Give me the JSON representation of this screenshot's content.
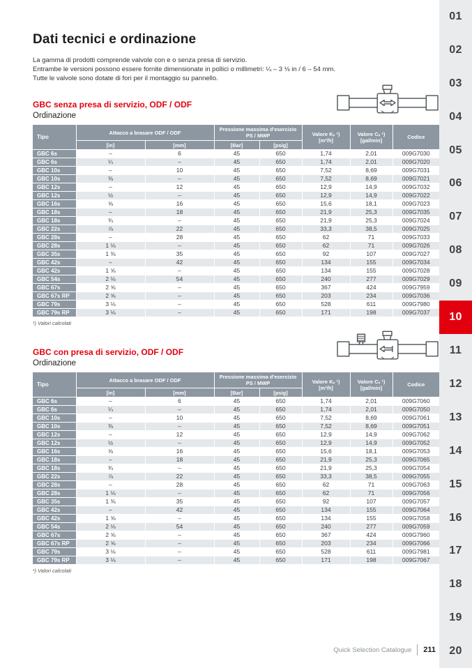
{
  "page": {
    "title": "Dati tecnici e ordinazione",
    "intro_lines": [
      "La gamma di prodotti comprende valvole con e o senza presa di servizio.",
      "Entrambe le versioni possono essere fornite dimensionate in pollici o millimetri: ¼ – 3 ⅛ in / 6 – 54 mm.",
      "Tutte le valvole sono dotate di fori per il montaggio su pannello."
    ],
    "footnote": "¹) Valori calcolati",
    "footer": {
      "catalogue": "Quick Selection Catalogue",
      "page_number": "211"
    }
  },
  "table_headers": {
    "tipo": "Tipo",
    "attacco": "Attacco a brasare ODF / ODF",
    "pressione_line1": "Pressione massima d'esercizio",
    "pressione_line2": "PS / MWP",
    "in": "[in]",
    "mm": "[mm]",
    "bar": "[Bar]",
    "psig": "[psig]",
    "kv_line1": "Valore Kᵥ ¹)",
    "kv_line2": "[m³/h]",
    "cv_line1": "Valore Cᵥ ¹)",
    "cv_line2": "[gal/min]",
    "codice": "Codice"
  },
  "sections": [
    {
      "heading": "GBC senza presa di servizio, ODF / ODF",
      "subheading": "Ordinazione",
      "valve_icon": "ball-valve-icon",
      "rows": [
        [
          "GBC 6s",
          "–",
          "6",
          "45",
          "650",
          "1,74",
          "2,01",
          "009G7030"
        ],
        [
          "GBC 6s",
          "¼",
          "–",
          "45",
          "650",
          "1,74",
          "2,01",
          "009G7020"
        ],
        [
          "GBC 10s",
          "–",
          "10",
          "45",
          "650",
          "7,52",
          "8,69",
          "009G7031"
        ],
        [
          "GBC 10s",
          "⅜",
          "–",
          "45",
          "650",
          "7,52",
          "8,69",
          "009G7021"
        ],
        [
          "GBC 12s",
          "–",
          "12",
          "45",
          "650",
          "12,9",
          "14,9",
          "009G7032"
        ],
        [
          "GBC 12s",
          "½",
          "–",
          "45",
          "650",
          "12,9",
          "14,9",
          "009G7022"
        ],
        [
          "GBC 16s",
          "⅝",
          "16",
          "45",
          "650",
          "15,6",
          "18,1",
          "009G7023"
        ],
        [
          "GBC 18s",
          "–",
          "18",
          "45",
          "650",
          "21,9",
          "25,3",
          "009G7035"
        ],
        [
          "GBC 18s",
          "¾",
          "–",
          "45",
          "650",
          "21,9",
          "25,3",
          "009G7024"
        ],
        [
          "GBC 22s",
          "⅞",
          "22",
          "45",
          "650",
          "33,3",
          "38,5",
          "009G7025"
        ],
        [
          "GBC 28s",
          "–",
          "28",
          "45",
          "650",
          "62",
          "71",
          "009G7033"
        ],
        [
          "GBC 28s",
          "1 ⅛",
          "–",
          "45",
          "650",
          "62",
          "71",
          "009G7026"
        ],
        [
          "GBC 35s",
          "1 ⅜",
          "35",
          "45",
          "650",
          "92",
          "107",
          "009G7027"
        ],
        [
          "GBC 42s",
          "–",
          "42",
          "45",
          "650",
          "134",
          "155",
          "009G7034"
        ],
        [
          "GBC 42s",
          "1 ⅝",
          "–",
          "45",
          "650",
          "134",
          "155",
          "009G7028"
        ],
        [
          "GBC 54s",
          "2 ⅛",
          "54",
          "45",
          "650",
          "240",
          "277",
          "009G7029"
        ],
        [
          "GBC 67s",
          "2 ⅝",
          "–",
          "45",
          "650",
          "367",
          "424",
          "009G7959"
        ],
        [
          "GBC 67s RP",
          "2 ⅝",
          "–",
          "45",
          "650",
          "203",
          "234",
          "009G7036"
        ],
        [
          "GBC 79s",
          "3 ⅛",
          "–",
          "45",
          "650",
          "528",
          "611",
          "009G7980"
        ],
        [
          "GBC 79s RP",
          "3 ⅛",
          "–",
          "45",
          "650",
          "171",
          "198",
          "009G7037"
        ]
      ]
    },
    {
      "heading": "GBC con presa di servizio, ODF / ODF",
      "subheading": "Ordinazione",
      "valve_icon": "ball-valve-service-port-icon",
      "rows": [
        [
          "GBC 6s",
          "–",
          "6",
          "45",
          "650",
          "1,74",
          "2,01",
          "009G7060"
        ],
        [
          "GBC 6s",
          "¼",
          "–",
          "45",
          "650",
          "1,74",
          "2,01",
          "009G7050"
        ],
        [
          "GBC 10s",
          "–",
          "10",
          "45",
          "650",
          "7,52",
          "8,69",
          "009G7061"
        ],
        [
          "GBC 10s",
          "⅜",
          "–",
          "45",
          "650",
          "7,52",
          "8,69",
          "009G7051"
        ],
        [
          "GBC 12s",
          "–",
          "12",
          "45",
          "650",
          "12,9",
          "14,9",
          "009G7062"
        ],
        [
          "GBC 12s",
          "½",
          "–",
          "45",
          "650",
          "12,9",
          "14,9",
          "009G7052"
        ],
        [
          "GBC 16s",
          "⅝",
          "16",
          "45",
          "650",
          "15,6",
          "18,1",
          "009G7053"
        ],
        [
          "GBC 18s",
          "–",
          "18",
          "45",
          "650",
          "21,9",
          "25,3",
          "009G7065"
        ],
        [
          "GBC 18s",
          "¾",
          "–",
          "45",
          "650",
          "21,9",
          "25,3",
          "009G7054"
        ],
        [
          "GBC 22s",
          "⅞",
          "22",
          "45",
          "650",
          "33,3",
          "38,5",
          "009G7055"
        ],
        [
          "GBC 28s",
          "–",
          "28",
          "45",
          "650",
          "62",
          "71",
          "009G7063"
        ],
        [
          "GBC 28s",
          "1 ⅛",
          "–",
          "45",
          "650",
          "62",
          "71",
          "009G7056"
        ],
        [
          "GBC 35s",
          "1 ⅜",
          "35",
          "45",
          "650",
          "92",
          "107",
          "009G7057"
        ],
        [
          "GBC 42s",
          "–",
          "42",
          "45",
          "650",
          "134",
          "155",
          "009G7064"
        ],
        [
          "GBC 42s",
          "1 ⅝",
          "–",
          "45",
          "650",
          "134",
          "155",
          "009G7058"
        ],
        [
          "GBC 54s",
          "2 ⅛",
          "54",
          "45",
          "650",
          "240",
          "277",
          "009G7059"
        ],
        [
          "GBC 67s",
          "2 ⅝",
          "–",
          "45",
          "650",
          "367",
          "424",
          "009G7960"
        ],
        [
          "GBC 67s RP",
          "2 ⅝",
          "–",
          "45",
          "650",
          "203",
          "234",
          "009G7066"
        ],
        [
          "GBC 79s",
          "3 ⅛",
          "–",
          "45",
          "650",
          "528",
          "611",
          "009G7981"
        ],
        [
          "GBC 79s RP",
          "3 ⅛",
          "–",
          "45",
          "650",
          "171",
          "198",
          "009G7067"
        ]
      ]
    }
  ],
  "sidebar": {
    "items": [
      "01",
      "02",
      "03",
      "04",
      "05",
      "06",
      "07",
      "08",
      "09",
      "10",
      "11",
      "12",
      "13",
      "14",
      "15",
      "16",
      "17",
      "18",
      "19",
      "20"
    ],
    "active": "10"
  }
}
